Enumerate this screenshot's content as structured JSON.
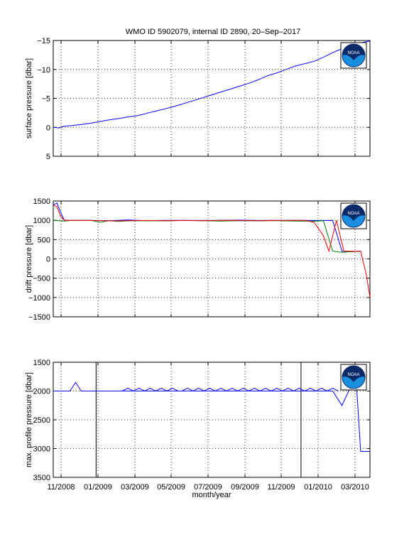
{
  "figure": {
    "title": "WMO ID 5902079, internal ID 2890, 20–Sep–2017",
    "xlabel": "month/year",
    "xtick_labels": [
      "11/2008",
      "01/2009",
      "03/2009",
      "05/2009",
      "07/2009",
      "09/2009",
      "11/2009",
      "01/2010",
      "03/2010"
    ]
  },
  "logo": {
    "text": "NOAA"
  },
  "colors": {
    "axes": "#000000",
    "grid": "#000000",
    "blue": "#0000ff",
    "green": "#008000",
    "red": "#ff0000",
    "black": "#000000"
  },
  "chart_data": [
    {
      "type": "line",
      "ylabel": "surface pressure [dbar]",
      "ylim": [
        -15,
        5
      ],
      "yticks": [
        5,
        0,
        -5,
        -10,
        -15
      ],
      "xlim": [
        0,
        17
      ],
      "grid": true,
      "series": [
        {
          "color": "blue",
          "x": [
            0,
            0.3,
            0.6,
            1,
            1.5,
            2,
            2.5,
            3,
            3.5,
            4,
            4.5,
            5,
            5.5,
            6,
            6.5,
            7,
            7.5,
            8,
            8.5,
            9,
            9.5,
            10,
            10.5,
            11,
            11.5,
            12,
            12.5,
            13,
            13.5,
            14,
            14.5,
            15,
            15.5,
            16,
            16.5,
            17
          ],
          "y": [
            0,
            0.1,
            -0.2,
            -0.3,
            -0.5,
            -0.7,
            -1.0,
            -1.3,
            -1.5,
            -1.8,
            -2.0,
            -2.4,
            -2.8,
            -3.2,
            -3.6,
            -4.1,
            -4.6,
            -5.1,
            -5.6,
            -6.1,
            -6.6,
            -7.1,
            -7.6,
            -8.2,
            -8.9,
            -9.4,
            -10.0,
            -10.6,
            -11.0,
            -11.4,
            -12.1,
            -12.9,
            -13.6,
            -14.2,
            -14.6,
            -14.9
          ]
        }
      ]
    },
    {
      "type": "line",
      "ylabel": "drift pressure [dbar]",
      "ylim": [
        1500,
        -1500
      ],
      "yticks": [
        -1500,
        -1000,
        -500,
        0,
        500,
        1000,
        1500
      ],
      "xlim": [
        0,
        17
      ],
      "grid": true,
      "series": [
        {
          "color": "blue",
          "x": [
            0,
            0.2,
            0.4,
            0.6,
            1,
            2,
            3,
            4,
            5,
            6,
            7,
            8,
            9,
            10,
            11,
            12,
            13,
            14,
            15,
            15.5,
            16,
            16.5
          ],
          "y": [
            1400,
            1450,
            1200,
            1000,
            1000,
            1000,
            990,
            1010,
            990,
            1000,
            1000,
            995,
            1000,
            1005,
            995,
            1000,
            1000,
            995,
            1000,
            200,
            190,
            200
          ]
        },
        {
          "color": "green",
          "x": [
            0,
            0.3,
            0.6,
            1,
            2,
            2.5,
            3,
            3.5,
            4,
            5,
            6,
            7,
            8,
            9,
            10,
            11,
            12,
            13,
            14,
            14.5,
            15,
            15.5,
            16,
            16.5
          ],
          "y": [
            1000,
            990,
            980,
            1000,
            1000,
            950,
            990,
            970,
            985,
            990,
            985,
            995,
            990,
            980,
            990,
            985,
            990,
            980,
            975,
            990,
            200,
            170,
            190,
            200
          ]
        },
        {
          "color": "red",
          "x": [
            0,
            0.2,
            0.4,
            0.6,
            1,
            2,
            3,
            4,
            5,
            6,
            7,
            8,
            9,
            10,
            11,
            12,
            13,
            13.5,
            14,
            14.5,
            14.8,
            15.2,
            15.6,
            16,
            16.5,
            16.8,
            17
          ],
          "y": [
            1400,
            1350,
            1100,
            1000,
            1000,
            995,
            985,
            990,
            995,
            990,
            995,
            990,
            1000,
            995,
            990,
            995,
            1000,
            1000,
            950,
            600,
            200,
            1000,
            200,
            200,
            200,
            -400,
            -1000
          ]
        }
      ]
    },
    {
      "type": "line",
      "ylabel": "max. profile pressure [dbar]",
      "ylim": [
        1500,
        3500
      ],
      "yticks": [
        1500,
        2000,
        2500,
        3000,
        3500
      ],
      "xlim": [
        0,
        17
      ],
      "grid": true,
      "vlines": [
        {
          "x": 2.3,
          "color": "black"
        },
        {
          "x": 13.3,
          "color": "black"
        }
      ],
      "series": [
        {
          "color": "blue",
          "x": [
            0,
            0.3,
            0.6,
            0.9,
            1.2,
            1.5,
            2,
            2.5,
            3,
            3.5,
            4,
            4.5,
            5,
            5.5,
            6,
            6.5,
            7,
            7.5,
            8,
            8.5,
            9,
            9.5,
            10,
            10.5,
            11,
            11.5,
            12,
            12.5,
            13,
            13.5,
            14,
            14.5,
            15,
            15.5,
            16,
            16.3,
            16.5,
            16.8,
            17
          ],
          "y": [
            2000,
            2000,
            2000,
            2000,
            1850,
            2000,
            2000,
            2000,
            2000,
            2000,
            2000,
            2000,
            2000,
            2000,
            2000,
            2000,
            2000,
            2000,
            2000,
            2000,
            2000,
            2000,
            2000,
            2000,
            2000,
            2000,
            2000,
            2000,
            2000,
            2000,
            2000,
            2000,
            2000,
            2250,
            1900,
            2000,
            3050,
            3050,
            3050
          ]
        },
        {
          "color": "blue",
          "x": [
            6.9,
            7.2,
            7.5,
            7.8,
            8.1,
            8.4,
            8.7,
            9.0,
            9.3,
            9.6,
            9.9,
            10.2,
            10.5,
            10.8,
            11.1,
            11.4,
            11.7,
            12.0,
            12.3,
            12.6,
            12.9,
            13.2,
            13.5,
            13.8,
            14.1,
            14.4,
            14.7,
            15.0,
            15.3
          ],
          "y": [
            2000,
            1950,
            2000,
            1950,
            2000,
            1950,
            2000,
            1950,
            2000,
            1950,
            2000,
            1950,
            2000,
            1950,
            2000,
            1950,
            2000,
            1950,
            2000,
            1950,
            2000,
            1950,
            2000,
            1950,
            2000,
            1950,
            2000,
            1950,
            2000
          ]
        },
        {
          "color": "blue",
          "x": [
            3.7,
            4.0,
            4.3,
            4.6,
            4.9,
            5.2,
            5.5,
            5.8,
            6.1,
            6.4,
            6.7
          ],
          "y": [
            2000,
            1950,
            2000,
            1950,
            2000,
            1950,
            2000,
            1950,
            2000,
            1950,
            2000
          ]
        }
      ]
    }
  ]
}
